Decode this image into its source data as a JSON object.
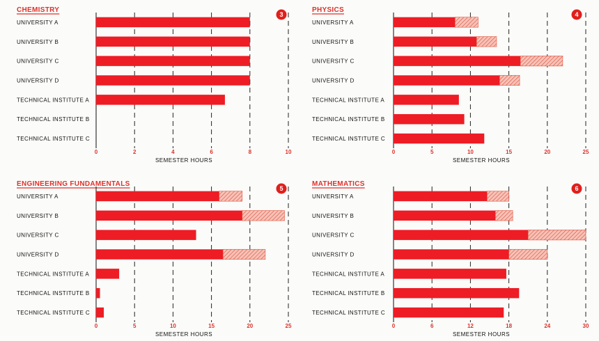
{
  "colors": {
    "bar": "#ee1c24",
    "hatch": "#f29b8a",
    "title": "#e0302a",
    "text": "#111111"
  },
  "chart_data": [
    {
      "type": "bar",
      "orientation": "horizontal",
      "title": "CHEMISTRY",
      "badge": "3",
      "xlabel": "SEMESTER HOURS",
      "xlim": [
        0,
        10
      ],
      "xticks": [
        "0",
        "2",
        "4",
        "6",
        "8",
        "10"
      ],
      "categories": [
        "UNIVERSITY A",
        "UNIVERSITY B",
        "UNIVERSITY C",
        "UNIVERSITY D",
        "TECHNICAL INSTITUTE A",
        "TECHNICAL INSTITUTE B",
        "TECHNICAL INSTITUTE C"
      ],
      "series": [
        {
          "style": "solid",
          "values": [
            8,
            8,
            8,
            8,
            6.7,
            0,
            0
          ]
        },
        {
          "style": "hatched",
          "values": [
            0,
            0,
            0,
            0,
            0,
            0,
            0
          ]
        }
      ],
      "grid": "vertical dashed"
    },
    {
      "type": "bar",
      "orientation": "horizontal",
      "title": "PHYSICS",
      "badge": "4",
      "xlabel": "SEMESTER HOURS",
      "xlim": [
        0,
        25
      ],
      "xticks": [
        "0",
        "5",
        "10",
        "15",
        "20",
        "25"
      ],
      "categories": [
        "UNIVERSITY A",
        "UNIVERSITY B",
        "UNIVERSITY C",
        "UNIVERSITY D",
        "TECHNICAL INSTITUTE A",
        "TECHNICAL INSTITUTE B",
        "TECHNICAL INSTITUTE C"
      ],
      "series": [
        {
          "style": "solid",
          "values": [
            8,
            10.8,
            16.5,
            13.8,
            8.5,
            9.2,
            11.8
          ]
        },
        {
          "style": "hatched",
          "values": [
            3,
            2.6,
            5.5,
            2.6,
            0,
            0,
            0
          ]
        }
      ],
      "grid": "vertical dashed"
    },
    {
      "type": "bar",
      "orientation": "horizontal",
      "title": "ENGINEERING FUNDAMENTALS",
      "badge": "5",
      "xlabel": "SEMESTER HOURS",
      "xlim": [
        0,
        25
      ],
      "xticks": [
        "0",
        "5",
        "10",
        "15",
        "20",
        "25"
      ],
      "categories": [
        "UNIVERSITY A",
        "UNIVERSITY B",
        "UNIVERSITY C",
        "UNIVERSITY D",
        "TECHNICAL INSTITUTE A",
        "TECHNICAL INSTITUTE B",
        "TECHNICAL INSTITUTE C"
      ],
      "series": [
        {
          "style": "solid",
          "values": [
            16,
            19,
            13,
            16.5,
            3,
            0.5,
            1
          ]
        },
        {
          "style": "hatched",
          "values": [
            3,
            5.5,
            0,
            5.5,
            0,
            0,
            0
          ]
        }
      ],
      "grid": "vertical dashed"
    },
    {
      "type": "bar",
      "orientation": "horizontal",
      "title": "MATHEMATICS",
      "badge": "6",
      "xlabel": "SEMESTER HOURS",
      "xlim": [
        0,
        30
      ],
      "xticks": [
        "0",
        "6",
        "12",
        "18",
        "24",
        "30"
      ],
      "categories": [
        "UNIVERSITY A",
        "UNIVERSITY B",
        "UNIVERSITY C",
        "UNIVERSITY D",
        "TECHNICAL INSTITUTE A",
        "TECHNICAL INSTITUTE B",
        "TECHNICAL INSTITUTE C"
      ],
      "series": [
        {
          "style": "solid",
          "values": [
            14.6,
            15.9,
            21,
            18,
            17.6,
            19.6,
            17.2
          ]
        },
        {
          "style": "hatched",
          "values": [
            3.4,
            2.7,
            9,
            6,
            0,
            0,
            0
          ]
        }
      ],
      "grid": "vertical dashed"
    }
  ]
}
